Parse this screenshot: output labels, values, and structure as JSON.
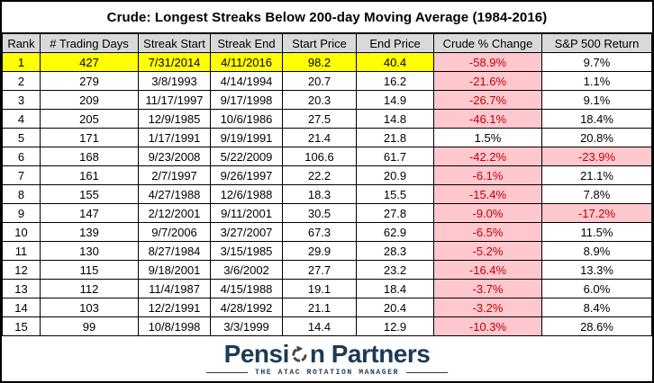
{
  "chart_data": {
    "type": "table",
    "title": "Crude: Longest Streaks Below 200-day Moving Average  (1984-2016)",
    "columns": [
      "Rank",
      "# Trading Days",
      "Streak Start",
      "Streak End",
      "Start Price",
      "End Price",
      "Crude % Change",
      "S&P 500 Return"
    ],
    "rows": [
      [
        "1",
        "427",
        "7/31/2014",
        "4/11/2016",
        "98.2",
        "40.4",
        "-58.9%",
        "9.7%"
      ],
      [
        "2",
        "279",
        "3/8/1993",
        "4/14/1994",
        "20.7",
        "16.2",
        "-21.6%",
        "1.1%"
      ],
      [
        "3",
        "209",
        "11/17/1997",
        "9/17/1998",
        "20.3",
        "14.9",
        "-26.7%",
        "9.1%"
      ],
      [
        "4",
        "205",
        "12/9/1985",
        "10/6/1986",
        "27.5",
        "14.8",
        "-46.1%",
        "18.4%"
      ],
      [
        "5",
        "171",
        "1/17/1991",
        "9/19/1991",
        "21.4",
        "21.8",
        "1.5%",
        "20.8%"
      ],
      [
        "6",
        "168",
        "9/23/2008",
        "5/22/2009",
        "106.6",
        "61.7",
        "-42.2%",
        "-23.9%"
      ],
      [
        "7",
        "161",
        "2/7/1997",
        "9/26/1997",
        "22.2",
        "20.9",
        "-6.1%",
        "21.1%"
      ],
      [
        "8",
        "155",
        "4/27/1988",
        "12/6/1988",
        "18.3",
        "15.5",
        "-15.4%",
        "7.8%"
      ],
      [
        "9",
        "147",
        "2/12/2001",
        "9/11/2001",
        "30.5",
        "27.8",
        "-9.0%",
        "-17.2%"
      ],
      [
        "10",
        "139",
        "9/7/2006",
        "3/27/2007",
        "67.3",
        "62.9",
        "-6.5%",
        "11.5%"
      ],
      [
        "11",
        "130",
        "8/27/1984",
        "3/15/1985",
        "29.9",
        "28.3",
        "-5.2%",
        "8.9%"
      ],
      [
        "12",
        "115",
        "9/18/2001",
        "3/6/2002",
        "27.7",
        "23.2",
        "-16.4%",
        "13.3%"
      ],
      [
        "13",
        "112",
        "11/4/1987",
        "4/15/1988",
        "19.1",
        "18.4",
        "-3.7%",
        "6.0%"
      ],
      [
        "14",
        "103",
        "12/2/1991",
        "4/28/1992",
        "21.1",
        "20.4",
        "-3.2%",
        "8.4%"
      ],
      [
        "15",
        "99",
        "10/8/1998",
        "3/3/1999",
        "14.4",
        "12.9",
        "-10.3%",
        "28.6%"
      ]
    ],
    "highlight_row_index": 0,
    "highlight_columns": [
      0,
      1,
      2,
      3,
      4,
      5
    ],
    "negative_value_columns": [
      6,
      7
    ]
  },
  "logo": {
    "brand_left": "Pensi",
    "brand_right": "n Partners",
    "brand": "Pension Partners",
    "icon": "rotation-arrow-icon",
    "tagline": "THE ATAC ROTATION MANAGER"
  },
  "colors": {
    "header_bg": "#d9d9d9",
    "highlight_row_bg": "#ffff00",
    "negative_bg": "#ffc7ce",
    "negative_text": "#c00000",
    "border": "#000000",
    "logo_navy": "#1d3a55",
    "icon_gray": "#474747"
  }
}
